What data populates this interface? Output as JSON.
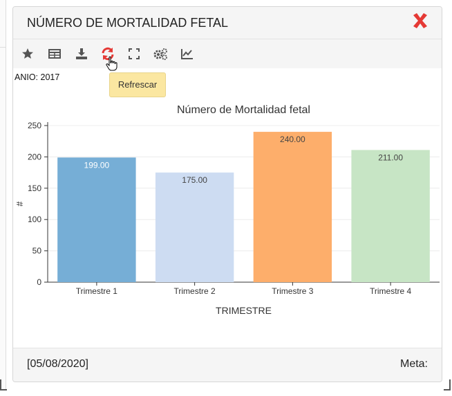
{
  "panel": {
    "title": "NÚMERO DE MORTALIDAD FETAL",
    "close_icon": "close-icon",
    "close_color": "#e53935"
  },
  "toolbar": {
    "items": [
      {
        "icon": "star-icon"
      },
      {
        "icon": "table-icon"
      },
      {
        "icon": "download-icon"
      },
      {
        "icon": "refresh-icon",
        "active": true,
        "color": "#e53935"
      },
      {
        "icon": "fullscreen-icon"
      },
      {
        "icon": "settings-icon"
      },
      {
        "icon": "line-chart-icon"
      }
    ],
    "tooltip": "Refrescar"
  },
  "filter": {
    "year_label": "ANIO: 2017"
  },
  "chart_data": {
    "type": "bar",
    "title": "Número de Mortalidad fetal",
    "xlabel": "TRIMESTRE",
    "ylabel": "#",
    "categories": [
      "Trimestre 1",
      "Trimestre 2",
      "Trimestre 3",
      "Trimestre 4"
    ],
    "values": [
      199,
      175,
      240,
      211
    ],
    "value_labels": [
      "199.00",
      "175.00",
      "240.00",
      "211.00"
    ],
    "colors": [
      "#76aed6",
      "#cddcf2",
      "#fdae6b",
      "#c7e5c5"
    ],
    "label_colors": [
      "#ffffff",
      "#444444",
      "#444444",
      "#444444"
    ],
    "ylim": [
      0,
      250
    ],
    "yticks": [
      0,
      50,
      100,
      150,
      200,
      250
    ],
    "grid": true
  },
  "footer": {
    "date": "[05/08/2020]",
    "meta_label": "Meta:"
  }
}
